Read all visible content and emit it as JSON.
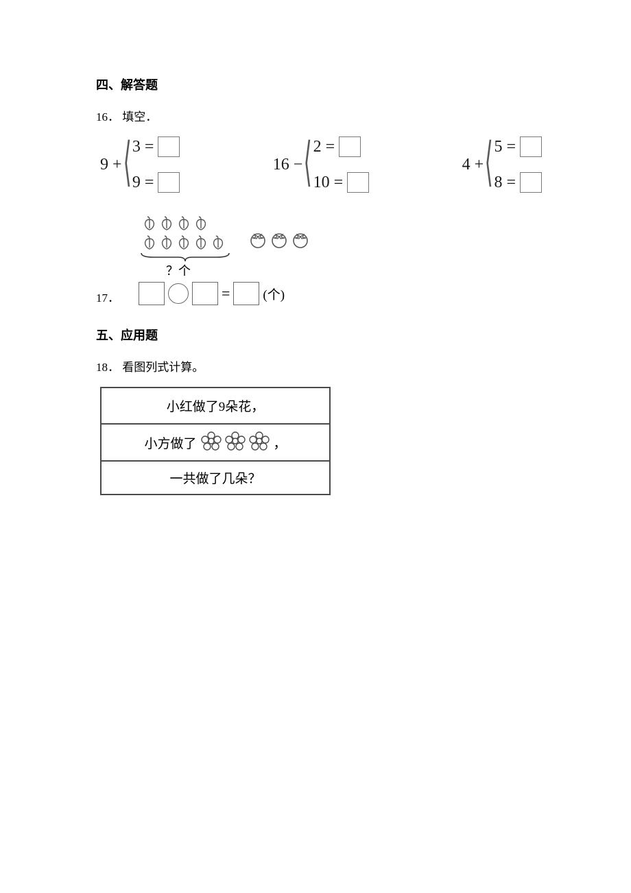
{
  "section4": {
    "heading": "四、解答题"
  },
  "q16": {
    "number": "16．",
    "text": "填空．",
    "groups": [
      {
        "left": "9 +",
        "top_lhs": "3 =",
        "bot_lhs": "9 ="
      },
      {
        "left": "16 −",
        "top_lhs": "2 =",
        "bot_lhs": "10 ="
      },
      {
        "left": "4 +",
        "top_lhs": "5 =",
        "bot_lhs": "8 ="
      }
    ]
  },
  "q17": {
    "number": "17．",
    "peach_row1": 4,
    "peach_row2": 5,
    "persimmons": 3,
    "qmark": "？个",
    "unit": "(个)",
    "colors": {
      "stroke": "#575757",
      "fill": "#ffffff",
      "brace": "#333333"
    }
  },
  "section5": {
    "heading": "五、应用题"
  },
  "q18": {
    "number": "18．",
    "text": "看图列式计算。",
    "row1": "小红做了9朵花，",
    "row2_prefix": "小方做了",
    "row2_suffix": "，",
    "row2_flowers": 3,
    "row3": "一共做了几朵？",
    "colors": {
      "border": "#4a4a4a",
      "flower_stroke": "#4c4c4c"
    }
  }
}
